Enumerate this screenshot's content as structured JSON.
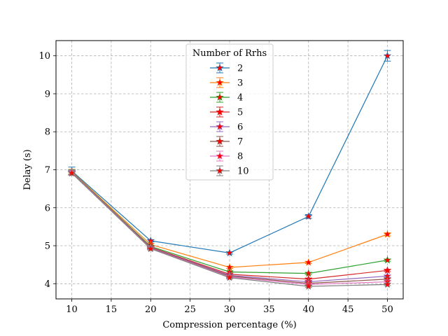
{
  "chart_data": {
    "type": "line",
    "xlabel": "Compression percentage (%)",
    "ylabel": "Delay (s)",
    "xlim": [
      8,
      52
    ],
    "ylim": [
      3.6,
      10.4
    ],
    "xticks": [
      10,
      15,
      20,
      25,
      30,
      35,
      40,
      45,
      50
    ],
    "yticks": [
      4,
      5,
      6,
      7,
      8,
      9,
      10
    ],
    "grid": true,
    "marker": "star",
    "marker_color": "#ff0000",
    "error_bars": true,
    "legend": {
      "title": "Number of Rrhs",
      "placement": "upper-center"
    },
    "x": [
      10,
      20,
      30,
      40,
      50
    ],
    "series": [
      {
        "name": "2",
        "color": "#1f77b4",
        "values": [
          6.97,
          5.13,
          4.81,
          5.77,
          10.0
        ],
        "errors": [
          0.1,
          0.03,
          0.03,
          0.05,
          0.14
        ]
      },
      {
        "name": "3",
        "color": "#ff7f0e",
        "values": [
          6.95,
          5.03,
          4.43,
          4.56,
          5.3
        ],
        "errors": [
          0.06,
          0.03,
          0.03,
          0.03,
          0.04
        ]
      },
      {
        "name": "4",
        "color": "#2ca02c",
        "values": [
          6.94,
          4.98,
          4.31,
          4.27,
          4.62
        ],
        "errors": [
          0.06,
          0.03,
          0.03,
          0.03,
          0.03
        ]
      },
      {
        "name": "5",
        "color": "#d62728",
        "values": [
          6.93,
          4.96,
          4.25,
          4.12,
          4.35
        ],
        "errors": [
          0.06,
          0.03,
          0.03,
          0.03,
          0.03
        ]
      },
      {
        "name": "6",
        "color": "#9467bd",
        "values": [
          6.93,
          4.95,
          4.22,
          4.05,
          4.2
        ],
        "errors": [
          0.06,
          0.03,
          0.03,
          0.03,
          0.03
        ]
      },
      {
        "name": "7",
        "color": "#8c564b",
        "values": [
          6.92,
          4.94,
          4.2,
          4.01,
          4.12
        ],
        "errors": [
          0.06,
          0.03,
          0.03,
          0.03,
          0.03
        ]
      },
      {
        "name": "8",
        "color": "#e377c2",
        "values": [
          6.92,
          4.93,
          4.18,
          3.98,
          4.05
        ],
        "errors": [
          0.06,
          0.03,
          0.03,
          0.03,
          0.03
        ]
      },
      {
        "name": "10",
        "color": "#7f7f7f",
        "values": [
          6.91,
          4.92,
          4.16,
          3.93,
          3.98
        ],
        "errors": [
          0.06,
          0.03,
          0.03,
          0.03,
          0.03
        ]
      }
    ]
  }
}
